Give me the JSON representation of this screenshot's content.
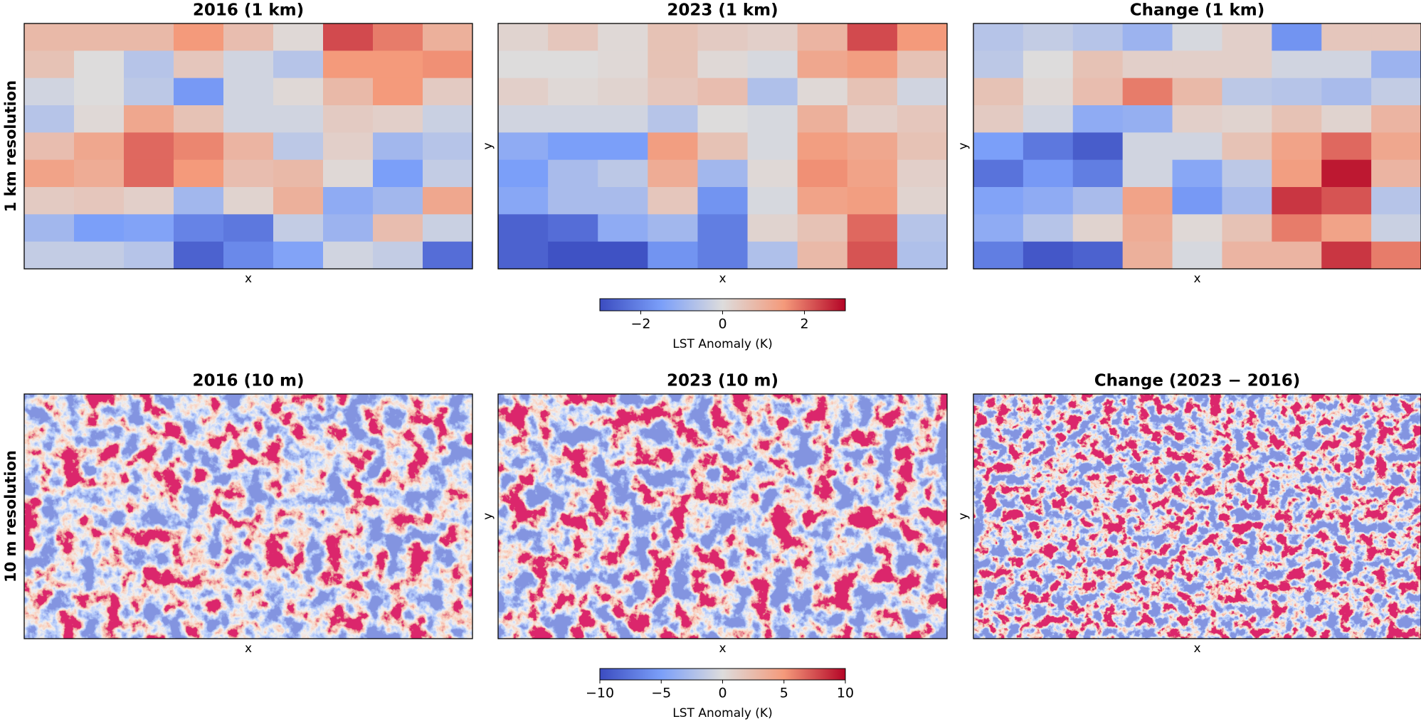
{
  "chart_data": [
    {
      "type": "heatmap",
      "title": "2016 (1 km)",
      "xlabel": "x",
      "colormap": "coolwarm",
      "colorbar": 0,
      "values": [
        [
          0.8,
          0.8,
          0.8,
          1.5,
          0.7,
          0.1,
          2.3,
          1.8,
          1.0
        ],
        [
          0.6,
          0.0,
          -0.6,
          0.5,
          -0.2,
          -0.6,
          1.5,
          1.5,
          1.6
        ],
        [
          -0.2,
          0.0,
          -0.5,
          -1.6,
          -0.2,
          0.1,
          0.8,
          1.5,
          0.4
        ],
        [
          -0.6,
          0.1,
          1.2,
          0.6,
          -0.2,
          -0.2,
          0.4,
          0.3,
          -0.3
        ],
        [
          0.7,
          1.2,
          2.0,
          1.7,
          0.9,
          -0.5,
          0.3,
          -0.9,
          -0.6
        ],
        [
          1.3,
          1.1,
          2.0,
          1.5,
          0.7,
          0.8,
          0.1,
          -1.5,
          -0.4
        ],
        [
          0.4,
          0.5,
          0.3,
          -0.9,
          0.2,
          1.0,
          -1.2,
          -0.9,
          1.2
        ],
        [
          -0.9,
          -1.5,
          -1.4,
          -2.0,
          -2.2,
          -0.4,
          -1.0,
          0.7,
          -0.3
        ],
        [
          -0.4,
          -0.4,
          -0.6,
          -2.6,
          -1.9,
          -1.4,
          -0.2,
          -0.4,
          -2.4
        ]
      ]
    },
    {
      "type": "heatmap",
      "title": "2023 (1 km)",
      "xlabel": "x",
      "ylabel": "y",
      "colormap": "coolwarm",
      "colorbar": 0,
      "values": [
        [
          0.2,
          0.5,
          0.1,
          0.6,
          0.4,
          0.3,
          0.9,
          2.3,
          1.5
        ],
        [
          0.0,
          0.0,
          0.1,
          0.6,
          0.1,
          -0.1,
          1.2,
          1.4,
          0.6
        ],
        [
          0.3,
          0.1,
          0.2,
          0.5,
          0.7,
          -0.7,
          0.1,
          0.6,
          -0.2
        ],
        [
          -0.2,
          -0.2,
          -0.2,
          -0.6,
          0.0,
          -0.1,
          1.0,
          0.3,
          0.5
        ],
        [
          -1.2,
          -1.5,
          -1.5,
          1.4,
          0.6,
          -0.1,
          1.4,
          1.2,
          0.6
        ],
        [
          -1.5,
          -0.8,
          -0.5,
          1.1,
          -0.9,
          0.1,
          1.6,
          1.3,
          0.3
        ],
        [
          -1.3,
          -0.8,
          -0.8,
          0.5,
          -1.7,
          -0.1,
          1.3,
          1.4,
          0.2
        ],
        [
          -2.6,
          -2.4,
          -1.2,
          -0.9,
          -2.1,
          0.2,
          0.6,
          2.0,
          -0.6
        ],
        [
          -2.6,
          -2.9,
          -2.9,
          -1.7,
          -2.1,
          -0.7,
          0.8,
          2.2,
          -0.7
        ]
      ]
    },
    {
      "type": "heatmap",
      "title": "Change (1 km)",
      "xlabel": "x",
      "ylabel": "y",
      "colormap": "coolwarm",
      "colorbar": 0,
      "values": [
        [
          -0.6,
          -0.4,
          -0.6,
          -1.0,
          -0.1,
          0.3,
          -1.7,
          0.5,
          0.5
        ],
        [
          -0.5,
          0.0,
          0.6,
          0.3,
          0.3,
          0.3,
          -0.2,
          -0.2,
          -1.0
        ],
        [
          0.6,
          0.1,
          0.7,
          1.8,
          0.8,
          -0.5,
          -0.6,
          -0.8,
          -0.4
        ],
        [
          0.4,
          -0.2,
          -1.2,
          -1.1,
          0.3,
          0.2,
          0.6,
          0.2,
          0.9
        ],
        [
          -1.5,
          -2.2,
          -2.7,
          -0.2,
          -0.2,
          0.6,
          1.3,
          2.0,
          1.2
        ],
        [
          -2.3,
          -1.6,
          -2.1,
          -0.2,
          -1.3,
          -0.5,
          1.4,
          2.8,
          0.9
        ],
        [
          -1.4,
          -1.2,
          -0.8,
          1.3,
          -1.6,
          -0.8,
          2.5,
          2.2,
          -0.6
        ],
        [
          -1.2,
          -0.6,
          0.2,
          1.1,
          0.1,
          0.6,
          1.8,
          1.3,
          -0.3
        ],
        [
          -2.1,
          -2.8,
          -2.6,
          1.0,
          -0.1,
          0.9,
          0.9,
          2.5,
          1.8
        ]
      ]
    },
    {
      "type": "image",
      "title": "2016 (10 m)",
      "xlabel": "x",
      "colormap": "coolwarm",
      "colorbar": 1
    },
    {
      "type": "image",
      "title": "2023 (10 m)",
      "xlabel": "x",
      "ylabel": "y",
      "colormap": "coolwarm",
      "colorbar": 1
    },
    {
      "type": "image",
      "title": "Change (2023 − 2016)",
      "xlabel": "x",
      "ylabel": "y",
      "colormap": "coolwarm",
      "colorbar": 1
    }
  ],
  "row_labels": [
    "1 km resolution",
    "10 m resolution"
  ],
  "colorbars": [
    {
      "label": "LST Anomaly (K)",
      "clim": [
        -3,
        3
      ],
      "ticks": [
        {
          "value": -2,
          "label": "−2"
        },
        0,
        2
      ]
    },
    {
      "label": "LST Anomaly (K)",
      "clim": [
        -10,
        10
      ],
      "ticks": [
        {
          "value": -10,
          "label": "−10"
        },
        {
          "value": -5,
          "label": "−5"
        },
        0,
        5,
        10
      ]
    }
  ]
}
